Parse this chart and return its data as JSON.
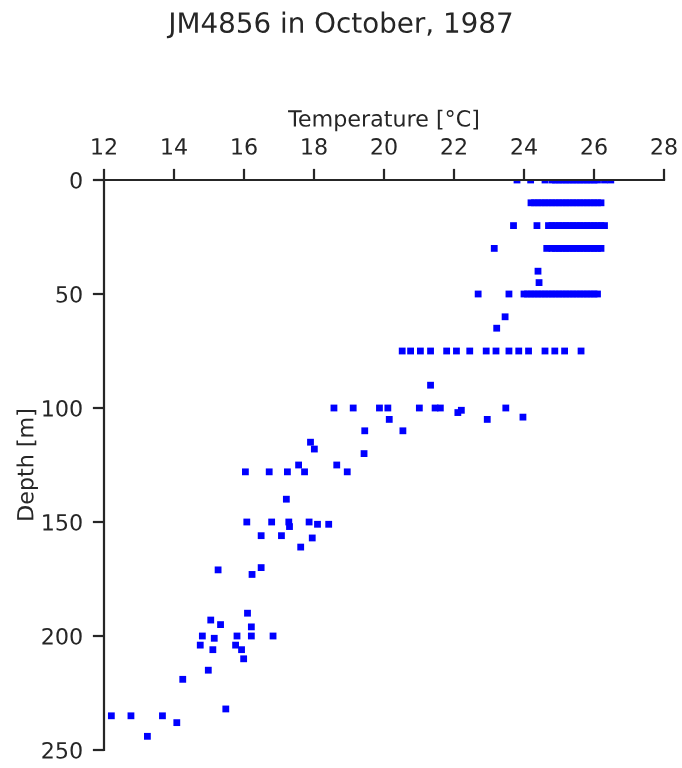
{
  "chart_data": {
    "type": "scatter",
    "title": "JM4856 in October, 1987",
    "xlabel": "Temperature [°C]",
    "ylabel": "Depth [m]",
    "xlim": [
      12,
      28
    ],
    "xticks": [
      12,
      14,
      16,
      18,
      20,
      22,
      24,
      26,
      28
    ],
    "ylim": [
      250,
      0
    ],
    "yticks": [
      0,
      50,
      100,
      150,
      200,
      250
    ],
    "grid": false,
    "legend": false,
    "marker": "square",
    "series": [
      {
        "color": "#0000ff",
        "x": [
          23.8,
          24.19,
          24.6,
          24.8,
          24.9,
          25.0,
          25.1,
          25.2,
          25.3,
          25.4,
          25.5,
          25.6,
          25.7,
          25.8,
          25.9,
          26.0,
          26.1,
          26.3,
          26.48,
          24.2,
          24.3,
          24.4,
          24.5,
          24.6,
          24.7,
          24.8,
          24.9,
          25.0,
          25.1,
          25.2,
          25.3,
          25.4,
          25.5,
          25.6,
          25.7,
          25.8,
          25.9,
          26.0,
          26.1,
          26.2,
          23.7,
          24.37,
          24.7,
          24.8,
          24.9,
          25.0,
          25.1,
          25.2,
          25.3,
          25.4,
          25.5,
          25.6,
          25.7,
          25.8,
          25.9,
          26.0,
          26.1,
          26.2,
          26.3,
          23.15,
          24.65,
          24.8,
          24.9,
          25.0,
          25.1,
          25.2,
          25.3,
          25.4,
          25.5,
          25.6,
          25.7,
          25.8,
          25.9,
          26.0,
          26.1,
          26.2,
          24.4,
          24.43,
          22.69,
          23.57,
          24.0,
          24.1,
          24.2,
          24.3,
          24.4,
          24.5,
          24.6,
          24.7,
          24.8,
          24.9,
          25.0,
          25.1,
          25.2,
          25.3,
          25.4,
          25.5,
          25.6,
          25.7,
          25.8,
          25.9,
          26.0,
          26.1,
          23.46,
          23.22,
          20.52,
          20.76,
          21.04,
          21.33,
          21.79,
          22.07,
          22.45,
          22.92,
          23.2,
          23.57,
          23.85,
          24.13,
          24.6,
          24.88,
          25.16,
          25.63,
          21.33,
          18.57,
          19.12,
          19.87,
          20.11,
          21.01,
          21.46,
          21.61,
          23.48,
          22.21,
          22.11,
          23.97,
          20.15,
          22.95,
          19.45,
          20.54,
          17.9,
          18.01,
          19.43,
          17.56,
          18.65,
          16.04,
          16.72,
          17.24,
          17.73,
          18.95,
          17.21,
          16.08,
          16.79,
          17.28,
          17.86,
          18.1,
          18.42,
          17.3,
          16.49,
          17.07,
          17.95,
          17.62,
          16.49,
          15.26,
          16.23,
          16.1,
          15.05,
          15.33,
          16.21,
          14.81,
          15.8,
          16.21,
          16.83,
          15.15,
          14.75,
          15.76,
          15.11,
          15.93,
          15.99,
          14.98,
          14.25,
          15.48,
          12.21,
          12.77,
          13.67,
          14.08,
          13.24
        ],
        "values": [
          0,
          0,
          0,
          0,
          0,
          0,
          0,
          0,
          0,
          0,
          0,
          0,
          0,
          0,
          0,
          0,
          0,
          0,
          0,
          10,
          10,
          10,
          10,
          10,
          10,
          10,
          10,
          10,
          10,
          10,
          10,
          10,
          10,
          10,
          10,
          10,
          10,
          10,
          10,
          10,
          20,
          20,
          20,
          20,
          20,
          20,
          20,
          20,
          20,
          20,
          20,
          20,
          20,
          20,
          20,
          20,
          20,
          20,
          20,
          30,
          30,
          30,
          30,
          30,
          30,
          30,
          30,
          30,
          30,
          30,
          30,
          30,
          30,
          30,
          30,
          30,
          40,
          45,
          50,
          50,
          50,
          50,
          50,
          50,
          50,
          50,
          50,
          50,
          50,
          50,
          50,
          50,
          50,
          50,
          50,
          50,
          50,
          50,
          50,
          50,
          50,
          50,
          60,
          65,
          75,
          75,
          75,
          75,
          75,
          75,
          75,
          75,
          75,
          75,
          75,
          75,
          75,
          75,
          75,
          75,
          90,
          100,
          100,
          100,
          100,
          100,
          100,
          100,
          100,
          101,
          102,
          104,
          105,
          105,
          110,
          110,
          115,
          118,
          120,
          125,
          125,
          128,
          128,
          128,
          128,
          128,
          140,
          150,
          150,
          150,
          150,
          151,
          151,
          152,
          156,
          156,
          157,
          161,
          170,
          171,
          173,
          190,
          193,
          195,
          196,
          200,
          200,
          200,
          200,
          201,
          204,
          204,
          206,
          206,
          210,
          215,
          219,
          232,
          235,
          235,
          235,
          238,
          244
        ]
      }
    ]
  }
}
